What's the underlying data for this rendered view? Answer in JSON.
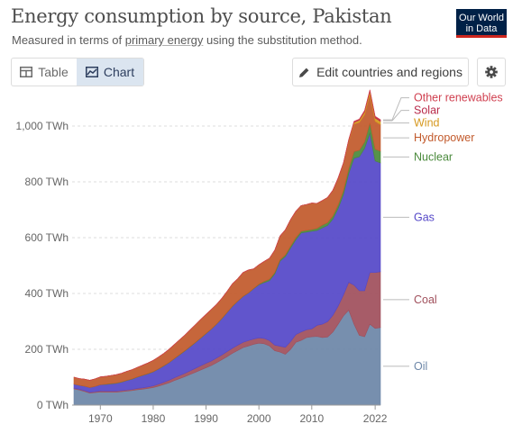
{
  "header": {
    "title": "Energy consumption by source, Pakistan",
    "subtitle_prefix": "Measured in terms of ",
    "subtitle_link": "primary energy",
    "subtitle_suffix": " using the substitution method.",
    "logo_line1": "Our World",
    "logo_line2": "in Data"
  },
  "toolbar": {
    "table_label": "Table",
    "chart_label": "Chart",
    "edit_label": "Edit countries and regions",
    "icons": [
      "table-icon",
      "chart-icon",
      "pencil-icon",
      "gear-icon"
    ]
  },
  "chart_data": {
    "type": "area",
    "stacked": true,
    "title": "Energy consumption by source, Pakistan",
    "subtitle": "Measured in terms of primary energy using the substitution method.",
    "x": [
      1965,
      1966,
      1967,
      1968,
      1969,
      1970,
      1971,
      1972,
      1973,
      1974,
      1975,
      1976,
      1977,
      1978,
      1979,
      1980,
      1981,
      1982,
      1983,
      1984,
      1985,
      1986,
      1987,
      1988,
      1989,
      1990,
      1991,
      1992,
      1993,
      1994,
      1995,
      1996,
      1997,
      1998,
      1999,
      2000,
      2001,
      2002,
      2003,
      2004,
      2005,
      2006,
      2007,
      2008,
      2009,
      2010,
      2011,
      2012,
      2013,
      2014,
      2015,
      2016,
      2017,
      2018,
      2019,
      2020,
      2021,
      2022,
      2023
    ],
    "xticks": [
      "1970",
      "1980",
      "1990",
      "2000",
      "2010",
      "2022"
    ],
    "xtick_values": [
      1970,
      1980,
      1990,
      2000,
      2010,
      2022
    ],
    "ylim": [
      0,
      1100
    ],
    "yticks": [
      0,
      200,
      400,
      600,
      800,
      1000
    ],
    "ytick_labels": [
      "0 TWh",
      "200 TWh",
      "400 TWh",
      "600 TWh",
      "800 TWh",
      "1,000 TWh"
    ],
    "grid": "horizontal-dashed",
    "legend_placement": "right",
    "series": [
      {
        "name": "Oil",
        "color": "#6d87a8",
        "values": [
          58,
          54,
          49,
          43,
          45,
          47,
          46,
          46,
          46,
          48,
          50,
          52,
          55,
          57,
          60,
          63,
          68,
          74,
          80,
          88,
          95,
          102,
          110,
          118,
          126,
          134,
          142,
          152,
          163,
          174,
          186,
          196,
          206,
          212,
          218,
          222,
          220,
          212,
          195,
          190,
          182,
          200,
          225,
          232,
          242,
          245,
          246,
          242,
          244,
          262,
          290,
          320,
          340,
          290,
          250,
          245,
          290,
          275,
          278
        ]
      },
      {
        "name": "Coal",
        "color": "#a0505c",
        "values": [
          3,
          3,
          3,
          3,
          3,
          4,
          4,
          4,
          4,
          4,
          4,
          4,
          5,
          5,
          5,
          6,
          7,
          8,
          9,
          10,
          11,
          12,
          13,
          14,
          15,
          16,
          16,
          17,
          17,
          18,
          18,
          19,
          19,
          19,
          19,
          19,
          19,
          19,
          20,
          21,
          25,
          28,
          28,
          30,
          28,
          28,
          40,
          48,
          55,
          60,
          65,
          75,
          100,
          140,
          160,
          165,
          185,
          200,
          200
        ]
      },
      {
        "name": "Gas",
        "color": "#5548c8",
        "values": [
          14,
          14,
          16,
          17,
          19,
          22,
          24,
          26,
          28,
          30,
          34,
          37,
          40,
          44,
          47,
          50,
          54,
          58,
          63,
          68,
          74,
          80,
          86,
          92,
          99,
          106,
          114,
          121,
          130,
          140,
          150,
          157,
          164,
          170,
          180,
          190,
          200,
          215,
          255,
          305,
          325,
          335,
          340,
          355,
          350,
          350,
          340,
          345,
          345,
          345,
          350,
          360,
          390,
          455,
          480,
          510,
          500,
          400,
          390
        ]
      },
      {
        "name": "Nuclear",
        "color": "#4a8a3c",
        "values": [
          0,
          0,
          0,
          0,
          0,
          0,
          1,
          1,
          1,
          1,
          1,
          1,
          1,
          1,
          1,
          1,
          1,
          1,
          1,
          1,
          1,
          1,
          1,
          1,
          1,
          1,
          1,
          1,
          1,
          1,
          1,
          1,
          1,
          1,
          1,
          2,
          4,
          5,
          5,
          5,
          6,
          7,
          7,
          6,
          6,
          6,
          7,
          10,
          10,
          11,
          12,
          14,
          17,
          23,
          23,
          23,
          36,
          42,
          42
        ]
      },
      {
        "name": "Hydropower",
        "color": "#c25a2c",
        "values": [
          25,
          24,
          25,
          26,
          27,
          28,
          28,
          29,
          30,
          31,
          32,
          33,
          34,
          36,
          38,
          40,
          42,
          44,
          47,
          50,
          53,
          56,
          60,
          63,
          66,
          68,
          70,
          70,
          72,
          75,
          80,
          80,
          85,
          82,
          70,
          70,
          72,
          75,
          80,
          85,
          90,
          95,
          95,
          92,
          93,
          95,
          90,
          88,
          90,
          92,
          95,
          96,
          98,
          99,
          100,
          98,
          102,
          100,
          95
        ]
      },
      {
        "name": "Wind",
        "color": "#d6981e",
        "values": [
          0,
          0,
          0,
          0,
          0,
          0,
          0,
          0,
          0,
          0,
          0,
          0,
          0,
          0,
          0,
          0,
          0,
          0,
          0,
          0,
          0,
          0,
          0,
          0,
          0,
          0,
          0,
          0,
          0,
          0,
          0,
          0,
          0,
          0,
          0,
          0,
          0,
          0,
          0,
          0,
          0,
          0,
          0,
          0,
          0,
          0,
          0,
          0,
          0,
          0,
          1,
          2,
          4,
          6,
          8,
          10,
          12,
          12,
          12
        ]
      },
      {
        "name": "Solar",
        "color": "#b82a4a",
        "values": [
          0,
          0,
          0,
          0,
          0,
          0,
          0,
          0,
          0,
          0,
          0,
          0,
          0,
          0,
          0,
          0,
          0,
          0,
          0,
          0,
          0,
          0,
          0,
          0,
          0,
          0,
          0,
          0,
          0,
          0,
          0,
          0,
          0,
          0,
          0,
          0,
          0,
          0,
          0,
          0,
          0,
          0,
          0,
          0,
          0,
          0,
          0,
          0,
          0,
          0,
          1,
          1,
          2,
          2,
          2,
          3,
          3,
          4,
          4
        ]
      },
      {
        "name": "Other renewables",
        "color": "#d04050",
        "values": [
          0,
          0,
          0,
          0,
          0,
          0,
          0,
          0,
          0,
          0,
          0,
          0,
          0,
          0,
          0,
          0,
          0,
          0,
          0,
          0,
          0,
          0,
          0,
          0,
          0,
          0,
          0,
          0,
          0,
          0,
          0,
          0,
          0,
          0,
          0,
          0,
          0,
          0,
          0,
          0,
          0,
          0,
          0,
          0,
          0,
          0,
          0,
          0,
          0,
          0,
          1,
          1,
          1,
          2,
          2,
          2,
          2,
          2,
          2
        ]
      }
    ]
  }
}
